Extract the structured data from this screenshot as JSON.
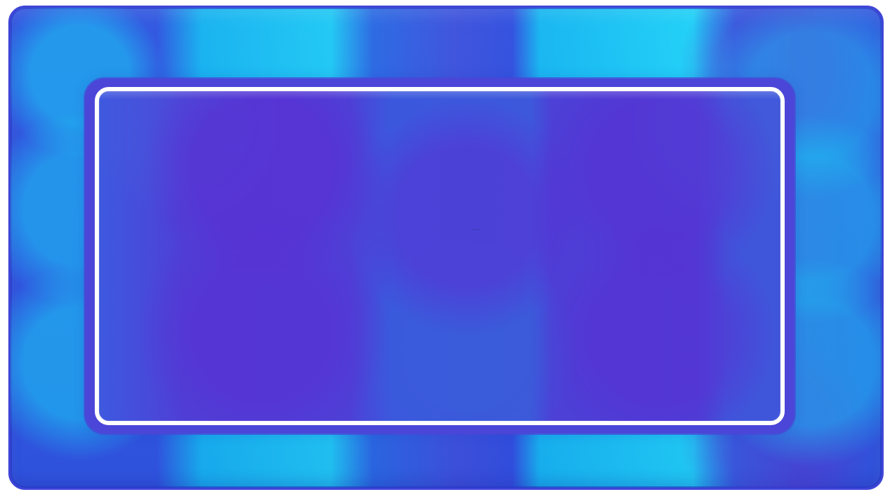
{
  "screen": {
    "accent_colors": {
      "outer_blue": "#2f56e0",
      "cyan_highlight": "#1fc8f4",
      "inner_violet": "#4c40d6",
      "frame_white": "#ffffff",
      "frame_border": "#3f45d6"
    },
    "elements": {
      "outer_panel": "outer-panel",
      "inner_frame": "inner-frame",
      "inner_panel": "inner-panel",
      "center_mark": "center-mark"
    }
  }
}
